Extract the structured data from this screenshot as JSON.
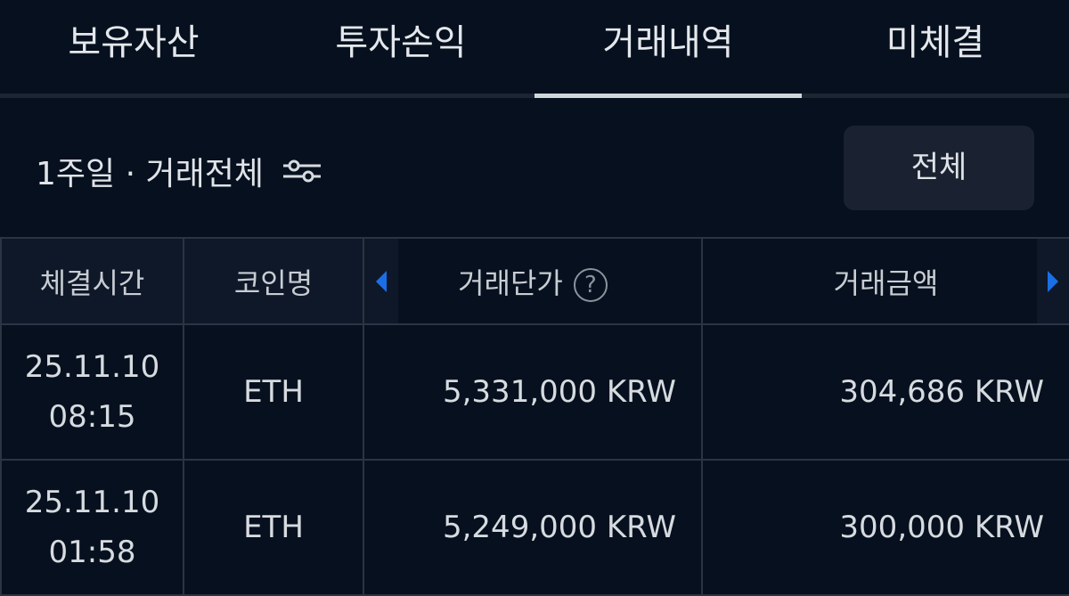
{
  "tabs": [
    {
      "label": "보유자산"
    },
    {
      "label": "투자손익"
    },
    {
      "label": "거래내역"
    },
    {
      "label": "미체결"
    }
  ],
  "active_tab": "거래내역",
  "filter": {
    "label": "1주일 · 거래전체",
    "button": "전체"
  },
  "colors": {
    "accent": "#1a6fe6",
    "background": "#06101e"
  },
  "table": {
    "headers": [
      "체결시간",
      "코인명",
      "거래단가",
      "거래금액"
    ],
    "rows": [
      {
        "date": "25.11.10",
        "time": "08:15",
        "coin": "ETH",
        "price": "5,331,000 KRW",
        "amount": "304,686 KRW"
      },
      {
        "date": "25.11.10",
        "time": "01:58",
        "coin": "ETH",
        "price": "5,249,000 KRW",
        "amount": "300,000 KRW"
      }
    ]
  }
}
